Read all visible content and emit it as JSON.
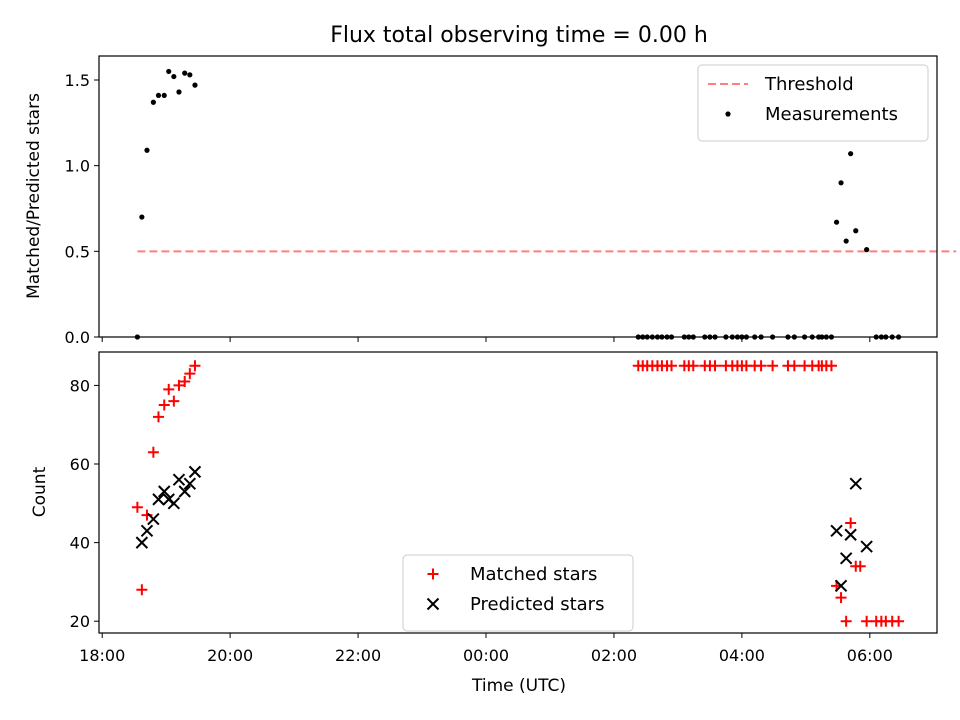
{
  "chart_data": {
    "title": "Flux total observing time = 0.00 h",
    "xlabel": "Time (UTC)",
    "x_range_hours": [
      17.95,
      31.05
    ],
    "x_ticks": [
      {
        "h": 18,
        "label": "18:00"
      },
      {
        "h": 20,
        "label": "20:00"
      },
      {
        "h": 22,
        "label": "22:00"
      },
      {
        "h": 24,
        "label": "00:00"
      },
      {
        "h": 26,
        "label": "02:00"
      },
      {
        "h": 28,
        "label": "04:00"
      },
      {
        "h": 30,
        "label": "06:00"
      }
    ],
    "panels": [
      {
        "type": "scatter",
        "ylabel": "Matched/Predicted stars",
        "ylim": [
          0,
          1.64
        ],
        "y_ticks": [
          {
            "v": 0,
            "label": "0.0"
          },
          {
            "v": 0.5,
            "label": "0.5"
          },
          {
            "v": 1.0,
            "label": "1.0"
          },
          {
            "v": 1.5,
            "label": "1.5"
          }
        ],
        "legend_position": "top-right",
        "threshold": {
          "name": "Threshold",
          "y": 0.5,
          "x": [
            18.55,
            31.35
          ],
          "color": "#ff7f7f"
        },
        "series": [
          {
            "name": "Measurements",
            "color": "#000000",
            "marker": "dot",
            "points": [
              [
                18.55,
                0.0
              ],
              [
                18.62,
                0.7
              ],
              [
                18.7,
                1.09
              ],
              [
                18.8,
                1.37
              ],
              [
                18.88,
                1.41
              ],
              [
                18.97,
                1.41
              ],
              [
                19.04,
                1.55
              ],
              [
                19.12,
                1.52
              ],
              [
                19.2,
                1.43
              ],
              [
                19.29,
                1.54
              ],
              [
                19.37,
                1.53
              ],
              [
                19.45,
                1.47
              ],
              [
                26.38,
                0.0
              ],
              [
                26.45,
                0.0
              ],
              [
                26.52,
                0.0
              ],
              [
                26.6,
                0.0
              ],
              [
                26.68,
                0.0
              ],
              [
                26.75,
                0.0
              ],
              [
                26.83,
                0.0
              ],
              [
                26.9,
                0.0
              ],
              [
                27.1,
                0.0
              ],
              [
                27.17,
                0.0
              ],
              [
                27.24,
                0.0
              ],
              [
                27.42,
                0.0
              ],
              [
                27.5,
                0.0
              ],
              [
                27.58,
                0.0
              ],
              [
                27.75,
                0.0
              ],
              [
                27.85,
                0.0
              ],
              [
                27.93,
                0.0
              ],
              [
                28.0,
                0.0
              ],
              [
                28.07,
                0.0
              ],
              [
                28.2,
                0.0
              ],
              [
                28.3,
                0.0
              ],
              [
                28.48,
                0.0
              ],
              [
                28.72,
                0.0
              ],
              [
                28.82,
                0.0
              ],
              [
                28.98,
                0.0
              ],
              [
                29.1,
                0.0
              ],
              [
                29.2,
                0.0
              ],
              [
                29.25,
                0.0
              ],
              [
                29.32,
                0.0
              ],
              [
                29.4,
                0.0
              ],
              [
                29.48,
                0.67
              ],
              [
                29.55,
                0.9
              ],
              [
                29.63,
                0.56
              ],
              [
                29.7,
                1.07
              ],
              [
                29.78,
                0.62
              ],
              [
                29.95,
                0.51
              ],
              [
                30.1,
                0.0
              ],
              [
                30.18,
                0.0
              ],
              [
                30.25,
                0.0
              ],
              [
                30.35,
                0.0
              ],
              [
                30.45,
                0.0
              ]
            ]
          }
        ]
      },
      {
        "type": "scatter",
        "ylabel": "Count",
        "ylim": [
          17,
          88.5
        ],
        "y_ticks": [
          {
            "v": 20,
            "label": "20"
          },
          {
            "v": 40,
            "label": "40"
          },
          {
            "v": 60,
            "label": "60"
          },
          {
            "v": 80,
            "label": "80"
          }
        ],
        "legend_position": "lower center",
        "series": [
          {
            "name": "Matched stars",
            "color": "#ff0000",
            "marker": "plus",
            "points": [
              [
                18.55,
                49
              ],
              [
                18.62,
                28
              ],
              [
                18.7,
                47
              ],
              [
                18.8,
                63
              ],
              [
                18.88,
                72
              ],
              [
                18.97,
                75
              ],
              [
                19.04,
                79
              ],
              [
                19.12,
                76
              ],
              [
                19.2,
                80
              ],
              [
                19.29,
                81
              ],
              [
                19.37,
                83
              ],
              [
                19.45,
                85
              ],
              [
                26.38,
                85
              ],
              [
                26.45,
                85
              ],
              [
                26.52,
                85
              ],
              [
                26.6,
                85
              ],
              [
                26.68,
                85
              ],
              [
                26.75,
                85
              ],
              [
                26.83,
                85
              ],
              [
                26.9,
                85
              ],
              [
                27.1,
                85
              ],
              [
                27.17,
                85
              ],
              [
                27.24,
                85
              ],
              [
                27.42,
                85
              ],
              [
                27.5,
                85
              ],
              [
                27.58,
                85
              ],
              [
                27.75,
                85
              ],
              [
                27.85,
                85
              ],
              [
                27.93,
                85
              ],
              [
                28.0,
                85
              ],
              [
                28.07,
                85
              ],
              [
                28.2,
                85
              ],
              [
                28.3,
                85
              ],
              [
                28.48,
                85
              ],
              [
                28.72,
                85
              ],
              [
                28.82,
                85
              ],
              [
                28.98,
                85
              ],
              [
                29.1,
                85
              ],
              [
                29.2,
                85
              ],
              [
                29.25,
                85
              ],
              [
                29.32,
                85
              ],
              [
                29.4,
                85
              ],
              [
                29.48,
                29
              ],
              [
                29.55,
                26
              ],
              [
                29.63,
                20
              ],
              [
                29.7,
                45
              ],
              [
                29.78,
                34
              ],
              [
                29.85,
                34
              ],
              [
                29.95,
                20
              ],
              [
                30.1,
                20
              ],
              [
                30.18,
                20
              ],
              [
                30.25,
                20
              ],
              [
                30.35,
                20
              ],
              [
                30.45,
                20
              ]
            ]
          },
          {
            "name": "Predicted stars",
            "color": "#000000",
            "marker": "x",
            "points": [
              [
                18.62,
                40
              ],
              [
                18.7,
                43
              ],
              [
                18.8,
                46
              ],
              [
                18.88,
                51
              ],
              [
                18.97,
                53
              ],
              [
                19.04,
                51
              ],
              [
                19.12,
                50
              ],
              [
                19.2,
                56
              ],
              [
                19.29,
                53
              ],
              [
                19.37,
                55
              ],
              [
                19.45,
                58
              ],
              [
                29.48,
                43
              ],
              [
                29.55,
                29
              ],
              [
                29.63,
                36
              ],
              [
                29.7,
                42
              ],
              [
                29.78,
                55
              ],
              [
                29.95,
                39
              ]
            ]
          }
        ]
      }
    ]
  }
}
